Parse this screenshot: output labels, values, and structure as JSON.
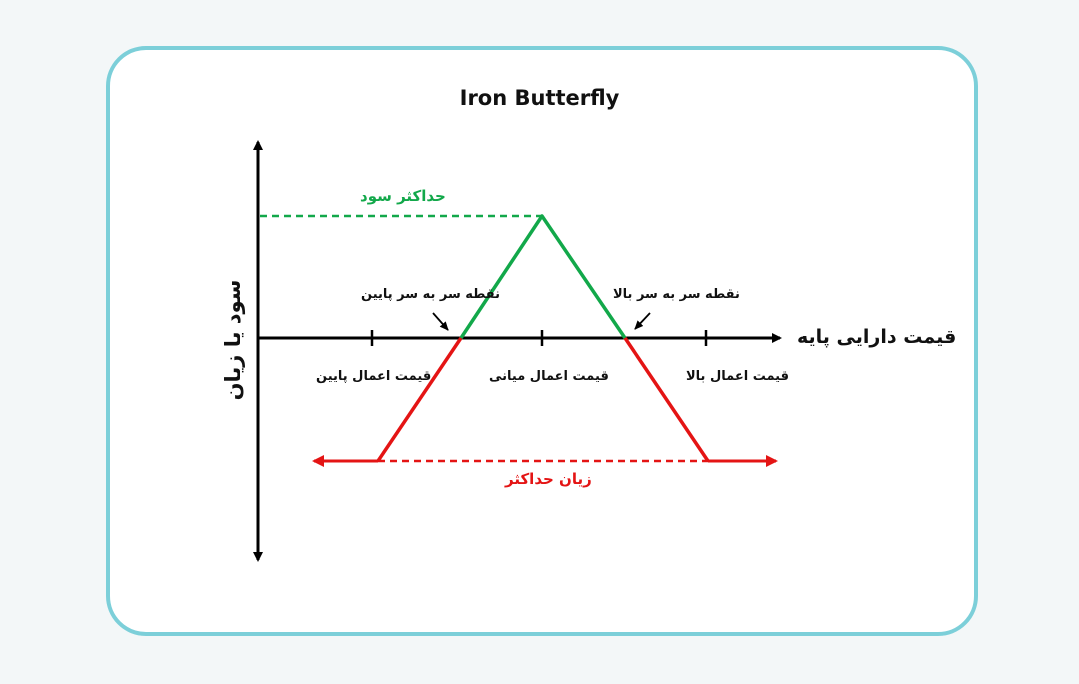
{
  "title": "Iron Butterfly",
  "y_axis_label": "سود یا زیان",
  "x_axis_label": "قیمت دارایی پایه",
  "labels": {
    "max_profit": "حداکثر سود",
    "max_loss": "زیان حداکثر",
    "lower_breakeven": "نقطه سر به سر پایین",
    "upper_breakeven": "نقطه سر به سر بالا",
    "lower_strike": "قیمت اعمال پایین",
    "middle_strike": "قیمت اعمال میانی",
    "upper_strike": "قیمت اعمال بالا"
  },
  "colors": {
    "profit": "#12a84a",
    "loss": "#e41414",
    "axis": "#000000",
    "border": "#7ccfd9"
  },
  "chart_data": {
    "type": "line",
    "description_free": true,
    "strikes": [
      "lower",
      "middle",
      "upper"
    ],
    "payoff_shape": "iron-butterfly",
    "series": [
      {
        "segment": "profit",
        "points": [
          [
            "lower_breakeven",
            0
          ],
          [
            "middle_strike",
            "max_profit"
          ],
          [
            "upper_breakeven",
            0
          ]
        ]
      },
      {
        "segment": "loss",
        "points": [
          [
            "lower_strike",
            "max_loss"
          ],
          [
            "lower_breakeven",
            0
          ]
        ]
      },
      {
        "segment": "loss",
        "points": [
          [
            "upper_breakeven",
            0
          ],
          [
            "upper_strike",
            "max_loss"
          ]
        ]
      }
    ]
  }
}
